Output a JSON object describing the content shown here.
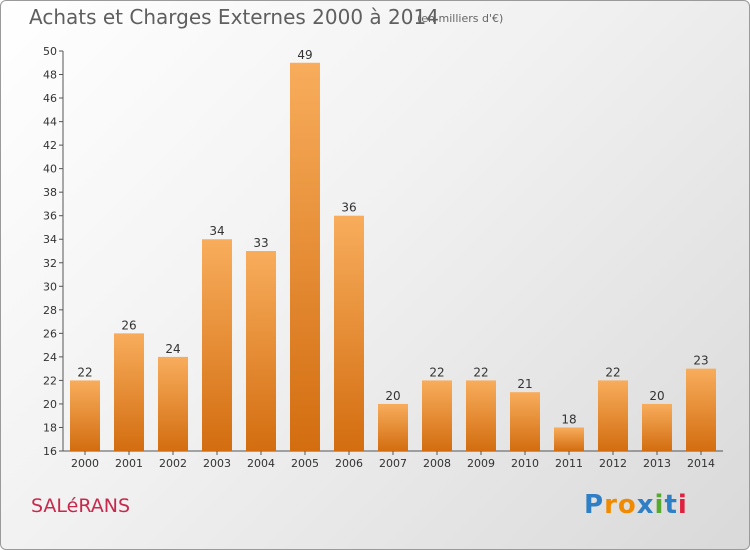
{
  "header": {
    "title": "Achats et Charges Externes 2000 à 2014",
    "unit": "(en milliers d'€)"
  },
  "footer": {
    "commune": "SALéRANS",
    "logo": [
      "P",
      "r",
      "o",
      "x",
      "i",
      "t",
      "i"
    ],
    "logo_colors": [
      "#2f7fc7",
      "#f08a00",
      "#f08a00",
      "#2f7fc7",
      "#55aa2d",
      "#2f7fc7",
      "#e0203f"
    ]
  },
  "colors": {
    "bar_light": "#f8ad5c",
    "bar_dark": "#d36d10",
    "axis": "#555555",
    "grid": "#dddddd"
  },
  "chart_data": {
    "type": "bar",
    "title": "Achats et Charges Externes 2000 à 2014",
    "xlabel": "",
    "ylabel": "",
    "categories": [
      "2000",
      "2001",
      "2002",
      "2003",
      "2004",
      "2005",
      "2006",
      "2007",
      "2008",
      "2009",
      "2010",
      "2011",
      "2012",
      "2013",
      "2014"
    ],
    "values": [
      22,
      26,
      24,
      34,
      33,
      49,
      36,
      20,
      22,
      22,
      21,
      18,
      22,
      20,
      23
    ],
    "ylim": [
      16,
      50
    ],
    "yticks": [
      16,
      18,
      20,
      22,
      24,
      26,
      28,
      30,
      32,
      34,
      36,
      38,
      40,
      42,
      44,
      46,
      48,
      50
    ],
    "grid": false,
    "data_labels": true
  }
}
